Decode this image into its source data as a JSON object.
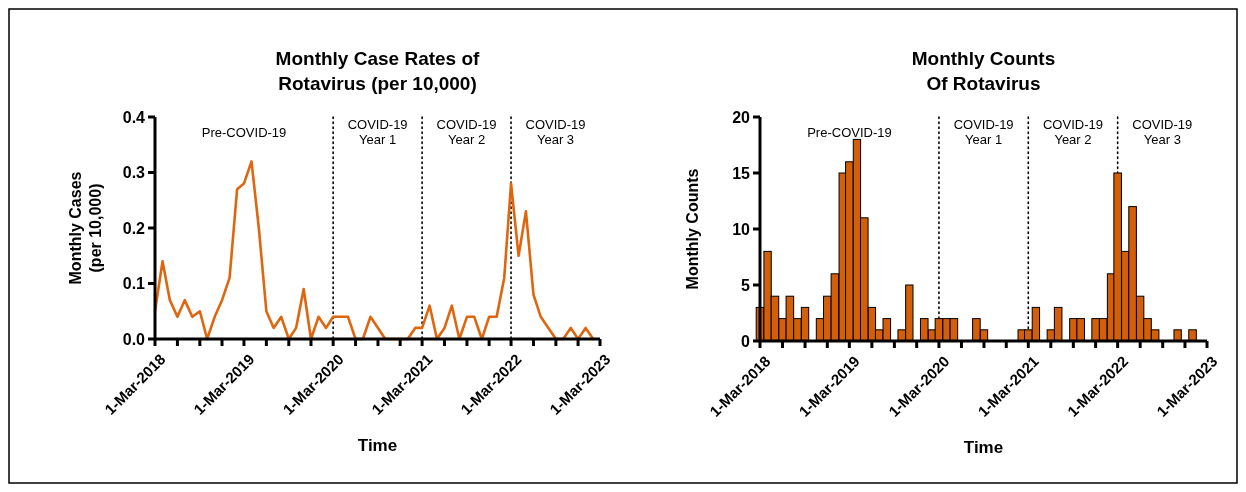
{
  "chart_data": [
    {
      "type": "line",
      "title": "Monthly Case Rates of\nRotavirus (per 10,000)",
      "xlabel": "Time",
      "ylabel": "Monthly Cases\n(per 10,000)",
      "x": [
        "2018-03",
        "2018-04",
        "2018-05",
        "2018-06",
        "2018-07",
        "2018-08",
        "2018-09",
        "2018-10",
        "2018-11",
        "2018-12",
        "2019-01",
        "2019-02",
        "2019-03",
        "2019-04",
        "2019-05",
        "2019-06",
        "2019-07",
        "2019-08",
        "2019-09",
        "2019-10",
        "2019-11",
        "2019-12",
        "2020-01",
        "2020-02",
        "2020-03",
        "2020-04",
        "2020-05",
        "2020-06",
        "2020-07",
        "2020-08",
        "2020-09",
        "2020-10",
        "2020-11",
        "2020-12",
        "2021-01",
        "2021-02",
        "2021-03",
        "2021-04",
        "2021-05",
        "2021-06",
        "2021-07",
        "2021-08",
        "2021-09",
        "2021-10",
        "2021-11",
        "2021-12",
        "2022-01",
        "2022-02",
        "2022-03",
        "2022-04",
        "2022-05",
        "2022-06",
        "2022-07",
        "2022-08",
        "2022-09",
        "2022-10",
        "2022-11",
        "2022-12",
        "2023-01",
        "2023-02"
      ],
      "series": [
        {
          "color": "#e0650f",
          "values": [
            0.05,
            0.14,
            0.07,
            0.04,
            0.07,
            0.04,
            0.05,
            0,
            0.04,
            0.07,
            0.11,
            0.27,
            0.28,
            0.32,
            0.2,
            0.05,
            0.02,
            0.04,
            0,
            0.02,
            0.09,
            0,
            0.04,
            0.02,
            0.04,
            0.04,
            0.04,
            0,
            0,
            0.04,
            0.02,
            0,
            0,
            0,
            0,
            0.02,
            0.02,
            0.06,
            0,
            0.02,
            0.06,
            0,
            0.04,
            0.04,
            0,
            0.04,
            0.04,
            0.11,
            0.28,
            0.15,
            0.23,
            0.08,
            0.04,
            0.02,
            0,
            0,
            0.02,
            0,
            0.02,
            0
          ]
        }
      ],
      "xlim": [
        "2018-03-01",
        "2023-03-01"
      ],
      "xticks": [
        {
          "value": "2018-03-01",
          "label": "1-Mar-2018"
        },
        {
          "value": "2018-06-01",
          "label": null
        },
        {
          "value": "2018-09-01",
          "label": null
        },
        {
          "value": "2018-12-01",
          "label": null
        },
        {
          "value": "2019-03-01",
          "label": "1-Mar-2019"
        },
        {
          "value": "2019-06-01",
          "label": null
        },
        {
          "value": "2019-09-01",
          "label": null
        },
        {
          "value": "2019-12-01",
          "label": null
        },
        {
          "value": "2020-03-01",
          "label": "1-Mar-2020"
        },
        {
          "value": "2020-06-01",
          "label": null
        },
        {
          "value": "2020-09-01",
          "label": null
        },
        {
          "value": "2020-12-01",
          "label": null
        },
        {
          "value": "2021-03-01",
          "label": "1-Mar-2021"
        },
        {
          "value": "2021-06-01",
          "label": null
        },
        {
          "value": "2021-09-01",
          "label": null
        },
        {
          "value": "2021-12-01",
          "label": null
        },
        {
          "value": "2022-03-01",
          "label": "1-Mar-2022"
        },
        {
          "value": "2022-06-01",
          "label": null
        },
        {
          "value": "2022-09-01",
          "label": null
        },
        {
          "value": "2022-12-01",
          "label": null
        },
        {
          "value": "2023-03-01",
          "label": "1-Mar-2023"
        }
      ],
      "ylim": [
        0,
        0.4
      ],
      "yticks": [
        {
          "value": 0,
          "label": "0.0"
        },
        {
          "value": 0.1,
          "label": "0.1"
        },
        {
          "value": 0.2,
          "label": "0.2"
        },
        {
          "value": 0.3,
          "label": "0.3"
        },
        {
          "value": 0.4,
          "label": "0.4"
        }
      ],
      "grid": false,
      "marker": "none",
      "line_style": "solid",
      "ref_lines": [
        {
          "axis": "x",
          "value": "2020-03-01",
          "line_style": "dotted"
        },
        {
          "axis": "x",
          "value": "2021-03-01",
          "line_style": "dotted"
        },
        {
          "axis": "x",
          "value": "2022-03-01",
          "line_style": "dotted"
        }
      ],
      "annotations": [
        "Pre-COVID-19",
        "COVID-19\nYear 1",
        "COVID-19\nYear 2",
        "COVID-19\nYear 3"
      ]
    },
    {
      "type": "bar",
      "title": "Monthly Counts\nOf Rotavirus",
      "xlabel": "Time",
      "ylabel": "Monthly Counts",
      "x": [
        "2018-03",
        "2018-04",
        "2018-05",
        "2018-06",
        "2018-07",
        "2018-08",
        "2018-09",
        "2018-10",
        "2018-11",
        "2018-12",
        "2019-01",
        "2019-02",
        "2019-03",
        "2019-04",
        "2019-05",
        "2019-06",
        "2019-07",
        "2019-08",
        "2019-09",
        "2019-10",
        "2019-11",
        "2019-12",
        "2020-01",
        "2020-02",
        "2020-03",
        "2020-04",
        "2020-05",
        "2020-06",
        "2020-07",
        "2020-08",
        "2020-09",
        "2020-10",
        "2020-11",
        "2020-12",
        "2021-01",
        "2021-02",
        "2021-03",
        "2021-04",
        "2021-05",
        "2021-06",
        "2021-07",
        "2021-08",
        "2021-09",
        "2021-10",
        "2021-11",
        "2021-12",
        "2022-01",
        "2022-02",
        "2022-03",
        "2022-04",
        "2022-05",
        "2022-06",
        "2022-07",
        "2022-08",
        "2022-09",
        "2022-10",
        "2022-11",
        "2022-12",
        "2023-01",
        "2023-02"
      ],
      "series": [
        {
          "color": "#d45f0a",
          "values": [
            3,
            8,
            4,
            2,
            4,
            2,
            3,
            0,
            2,
            4,
            6,
            15,
            16,
            18,
            11,
            3,
            1,
            2,
            0,
            1,
            5,
            0,
            2,
            1,
            2,
            2,
            2,
            0,
            0,
            2,
            1,
            0,
            0,
            0,
            0,
            1,
            1,
            3,
            0,
            1,
            3,
            0,
            2,
            2,
            0,
            2,
            2,
            6,
            15,
            8,
            12,
            4,
            2,
            1,
            0,
            0,
            1,
            0,
            1,
            0
          ]
        }
      ],
      "xlim": [
        "2018-03-01",
        "2023-03-01"
      ],
      "xticks": [
        {
          "value": "2018-03-01",
          "label": "1-Mar-2018"
        },
        {
          "value": "2018-06-01",
          "label": null
        },
        {
          "value": "2018-09-01",
          "label": null
        },
        {
          "value": "2018-12-01",
          "label": null
        },
        {
          "value": "2019-03-01",
          "label": "1-Mar-2019"
        },
        {
          "value": "2019-06-01",
          "label": null
        },
        {
          "value": "2019-09-01",
          "label": null
        },
        {
          "value": "2019-12-01",
          "label": null
        },
        {
          "value": "2020-03-01",
          "label": "1-Mar-2020"
        },
        {
          "value": "2020-06-01",
          "label": null
        },
        {
          "value": "2020-09-01",
          "label": null
        },
        {
          "value": "2020-12-01",
          "label": null
        },
        {
          "value": "2021-03-01",
          "label": "1-Mar-2021"
        },
        {
          "value": "2021-06-01",
          "label": null
        },
        {
          "value": "2021-09-01",
          "label": null
        },
        {
          "value": "2021-12-01",
          "label": null
        },
        {
          "value": "2022-03-01",
          "label": "1-Mar-2022"
        },
        {
          "value": "2022-06-01",
          "label": null
        },
        {
          "value": "2022-09-01",
          "label": null
        },
        {
          "value": "2022-12-01",
          "label": null
        },
        {
          "value": "2023-03-01",
          "label": "1-Mar-2023"
        }
      ],
      "ylim": [
        0,
        20
      ],
      "yticks": [
        0,
        5,
        10,
        15,
        20
      ],
      "grid": false,
      "ref_lines": [
        {
          "axis": "x",
          "value": "2020-03-01",
          "line_style": "dotted"
        },
        {
          "axis": "x",
          "value": "2021-03-01",
          "line_style": "dotted"
        },
        {
          "axis": "x",
          "value": "2022-03-01",
          "line_style": "dotted"
        }
      ],
      "annotations": [
        "Pre-COVID-19",
        "COVID-19\nYear 1",
        "COVID-19\nYear 2",
        "COVID-19\nYear 3"
      ]
    }
  ]
}
